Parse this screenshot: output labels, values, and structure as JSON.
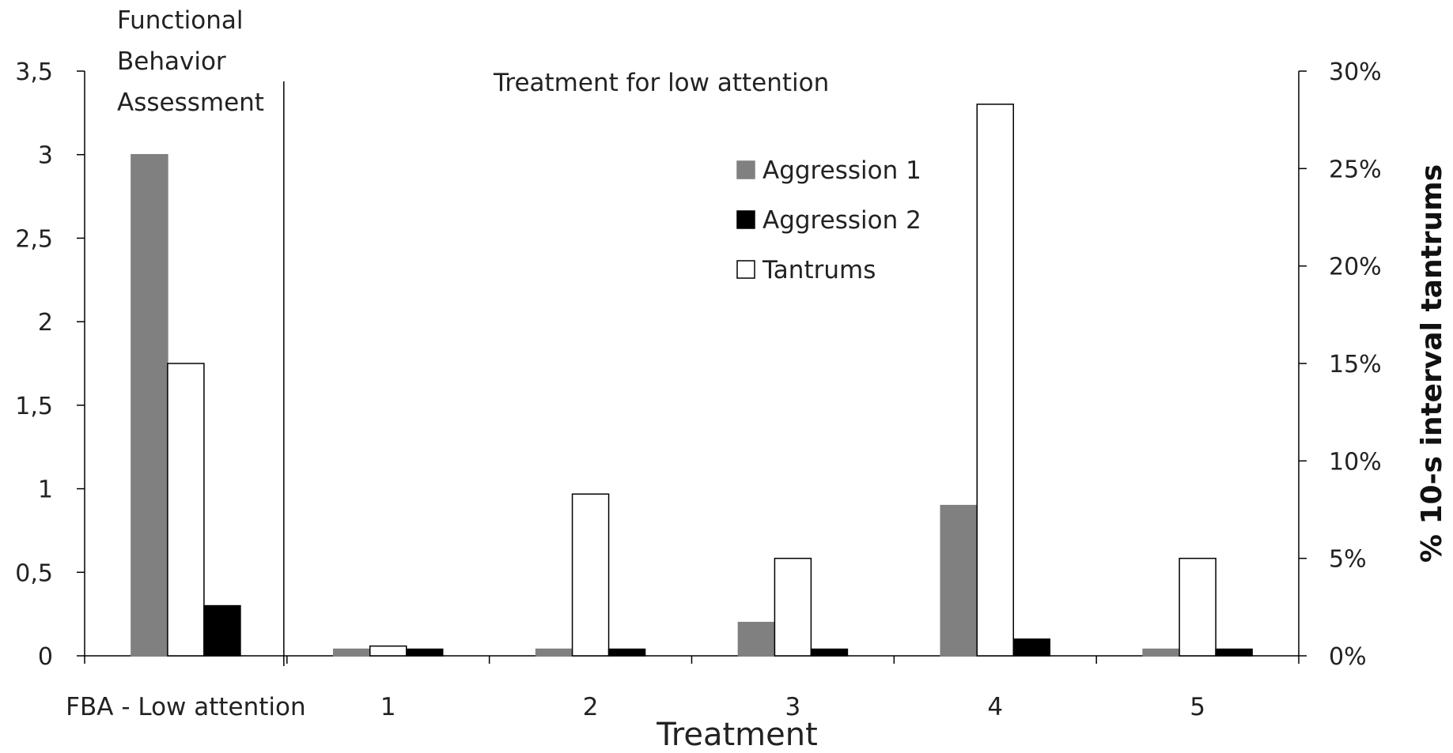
{
  "chart_data": {
    "type": "bar",
    "xlabel": "Treatment",
    "ylabel": "",
    "y2label": "% 10-s interval tantrums",
    "categories": [
      "FBA - Low attention",
      "1",
      "2",
      "3",
      "4",
      "5"
    ],
    "ylim": [
      0,
      3.5
    ],
    "y2lim": [
      0,
      0.3
    ],
    "yticks": [
      "0",
      "0,5",
      "1",
      "1,5",
      "2",
      "2,5",
      "3",
      "3,5"
    ],
    "y2ticks": [
      "0%",
      "5%",
      "10%",
      "15%",
      "20%",
      "25%",
      "30%"
    ],
    "series": [
      {
        "name": "Aggression 1",
        "axis": "left",
        "color": "#808080",
        "values": [
          3.0,
          0.04,
          0.04,
          0.2,
          0.9,
          0.04
        ]
      },
      {
        "name": "Tantrums",
        "axis": "right",
        "color": "#ffffff",
        "values": [
          0.15,
          0.005,
          0.083,
          0.05,
          0.283,
          0.05
        ]
      },
      {
        "name": "Aggression 2",
        "axis": "left",
        "color": "#000000",
        "values": [
          0.3,
          0.04,
          0.04,
          0.04,
          0.1,
          0.04
        ]
      }
    ],
    "legend_order": [
      "Aggression 1",
      "Aggression 2",
      "Tantrums"
    ],
    "legend_position": "top-center",
    "annotations": {
      "phase1": [
        "Functional",
        "Behavior",
        "Assessment"
      ],
      "phase2": "Treatment for low attention"
    },
    "grid": false
  }
}
